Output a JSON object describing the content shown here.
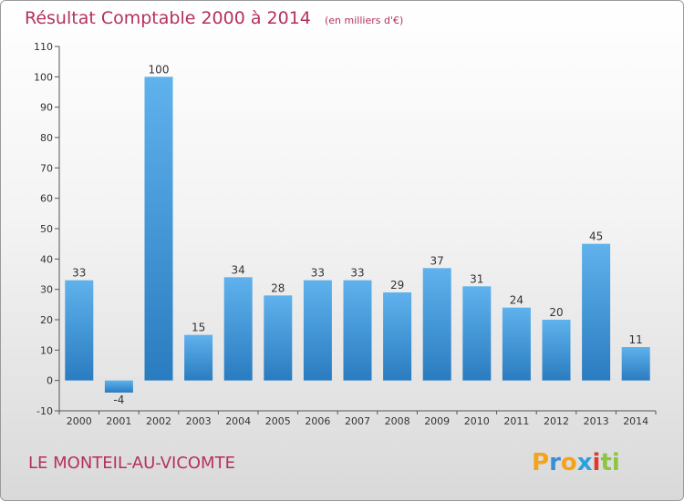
{
  "chart_data": {
    "type": "bar",
    "title": "Résultat Comptable 2000 à 2014",
    "unit_note": "(en milliers d'€)",
    "categories": [
      "2000",
      "2001",
      "2002",
      "2003",
      "2004",
      "2005",
      "2006",
      "2007",
      "2008",
      "2009",
      "2010",
      "2011",
      "2012",
      "2013",
      "2014"
    ],
    "values": [
      33,
      -4,
      100,
      15,
      34,
      28,
      33,
      33,
      29,
      37,
      31,
      24,
      20,
      45,
      11
    ],
    "ylim": [
      -10,
      110
    ],
    "yticks": [
      -10,
      0,
      10,
      20,
      30,
      40,
      50,
      60,
      70,
      80,
      90,
      100,
      110
    ],
    "grid": false,
    "bar_color": "#4a9fe0"
  },
  "commune_name": "LE MONTEIL-AU-VICOMTE",
  "brand": {
    "letters": [
      "P",
      "r",
      "o",
      "x",
      "i",
      "t",
      "i"
    ],
    "colors": [
      "#f5a31a",
      "#3a8fd6",
      "#f5a31a",
      "#2e9fe0",
      "#e2382f",
      "#8cc63f",
      "#8cc63f"
    ]
  }
}
